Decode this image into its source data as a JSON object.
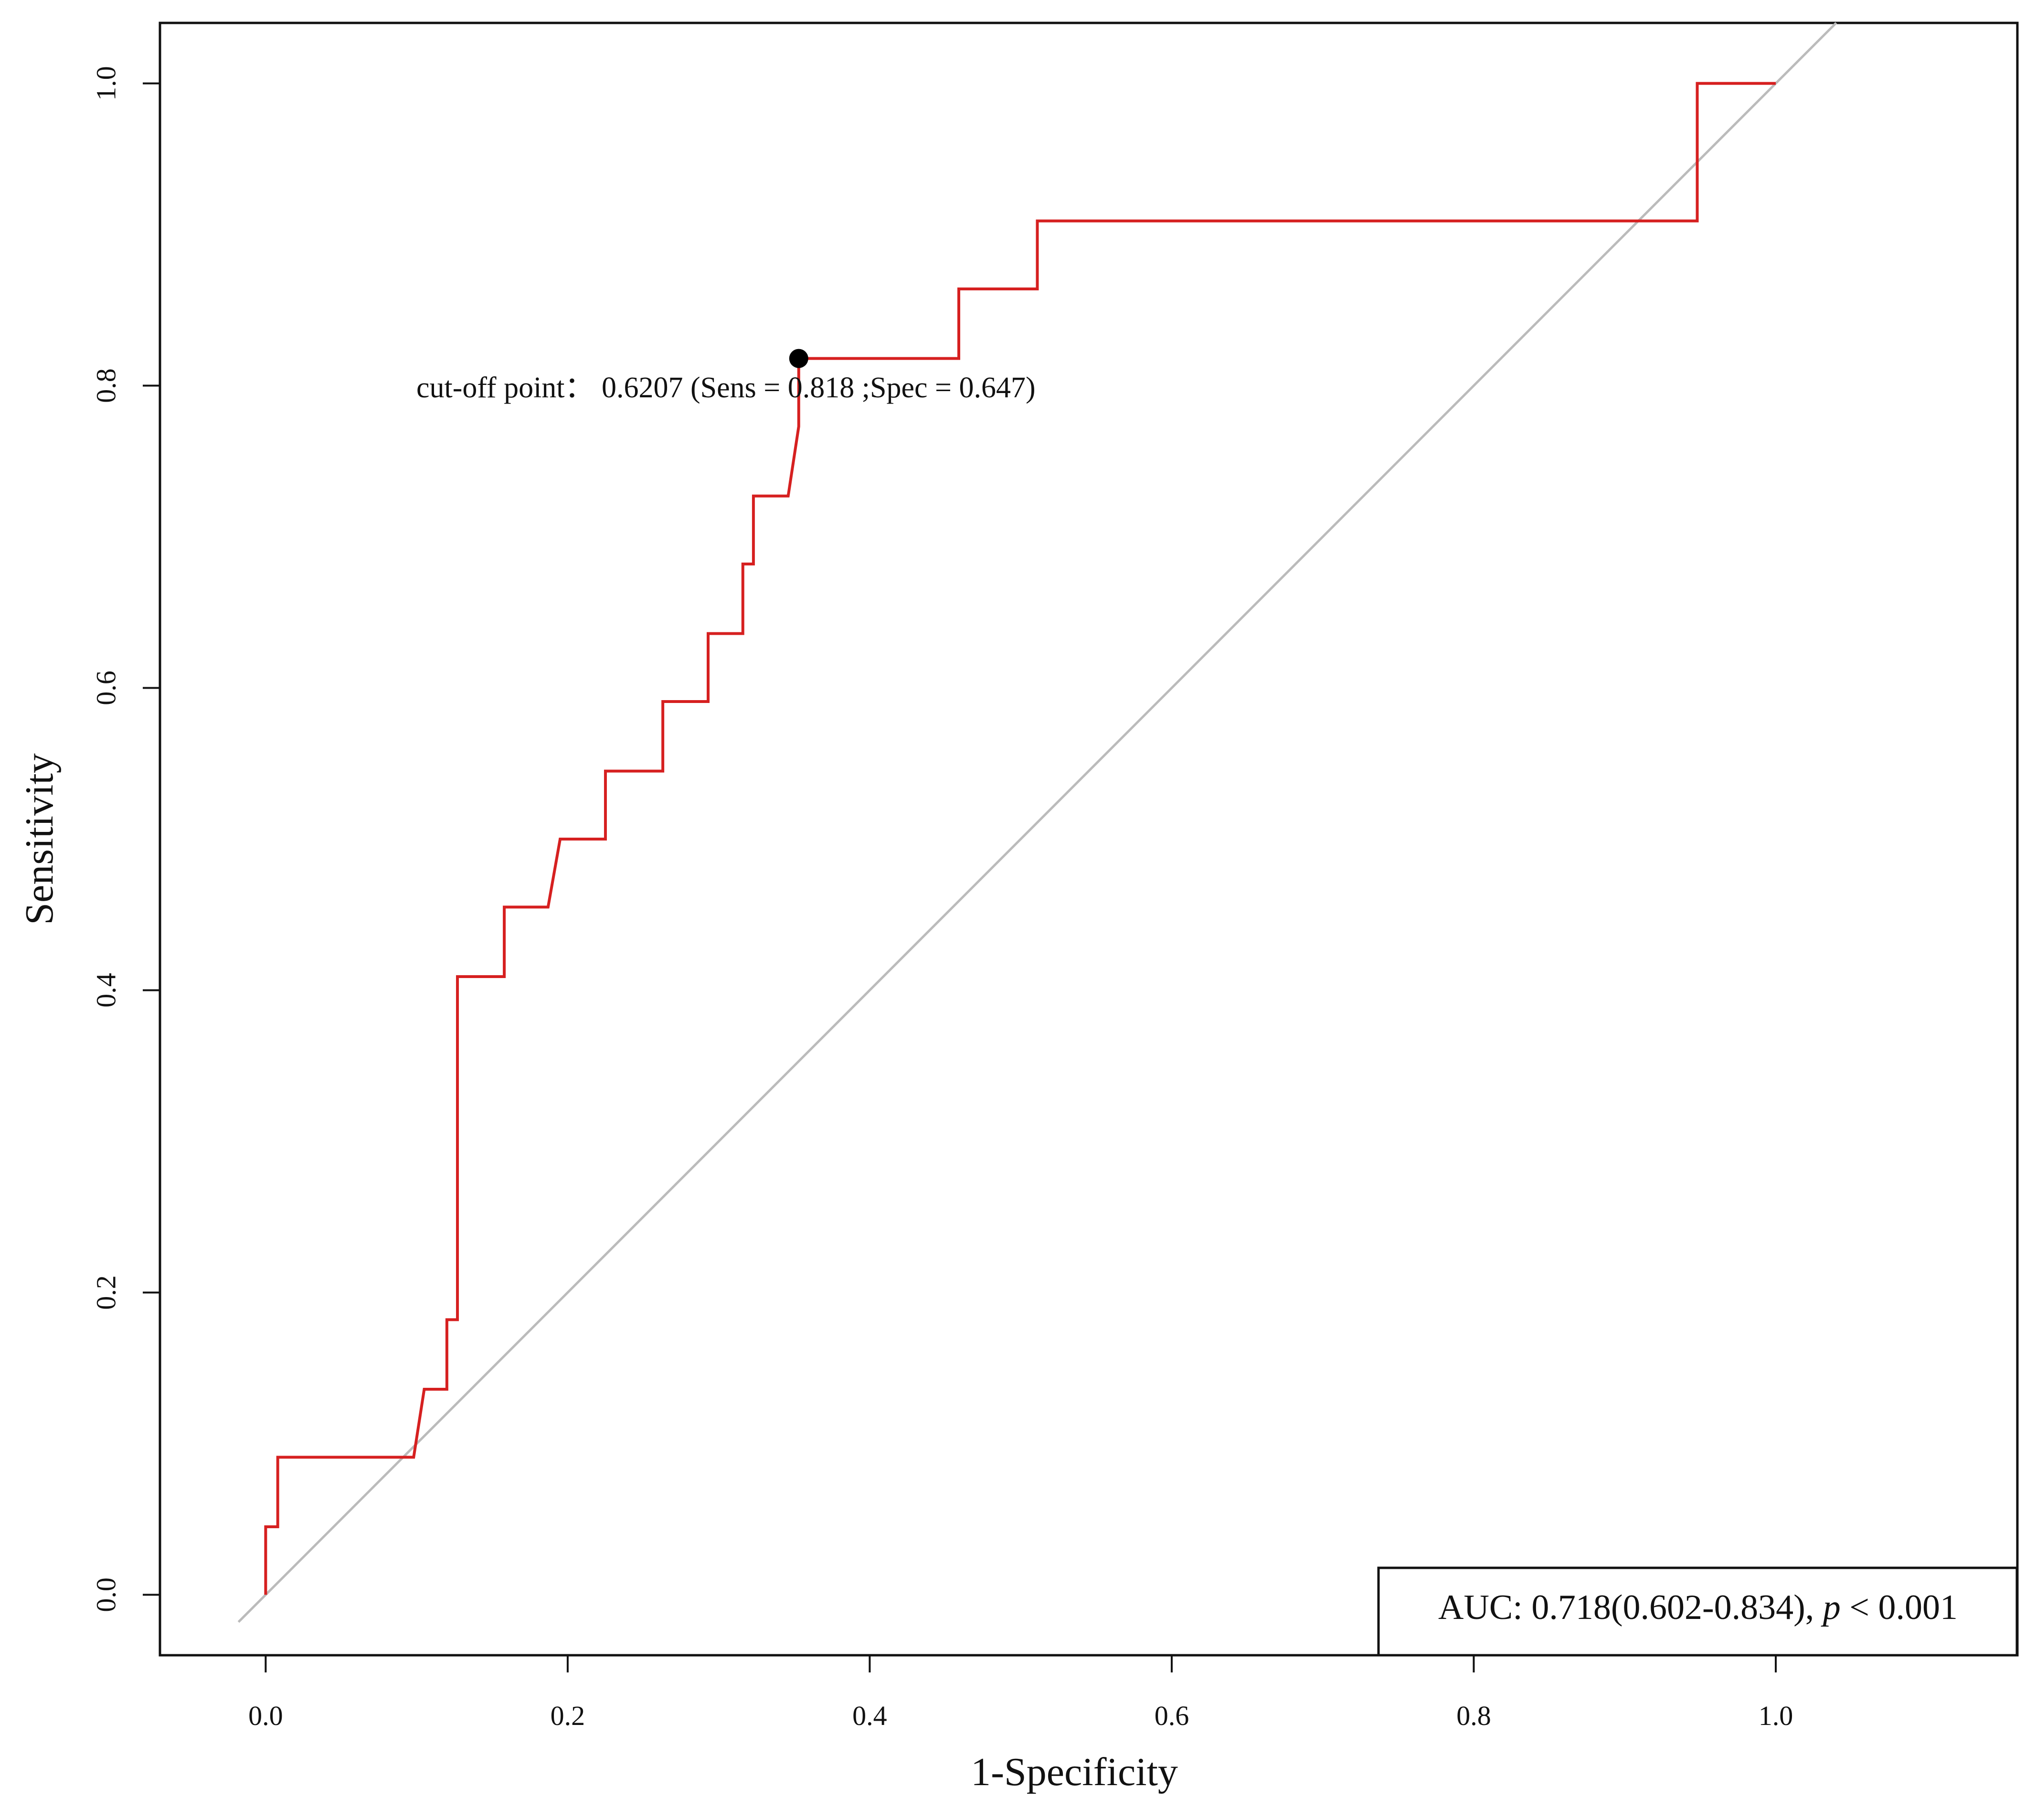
{
  "chart_data": {
    "type": "line",
    "title": "",
    "xlabel": "1-Specificity",
    "ylabel": "Sensitivity",
    "xlim": [
      -0.07,
      1.16
    ],
    "ylim": [
      -0.04,
      1.04
    ],
    "xticks": [
      0.0,
      0.2,
      0.4,
      0.6,
      0.8,
      1.0
    ],
    "yticks": [
      0.0,
      0.2,
      0.4,
      0.6,
      0.8,
      1.0
    ],
    "xtick_labels": [
      "0.0",
      "0.2",
      "0.4",
      "0.6",
      "0.8",
      "1.0"
    ],
    "ytick_labels": [
      "0.0",
      "0.2",
      "0.4",
      "0.6",
      "0.8",
      "1.0"
    ],
    "series": [
      {
        "name": "ROC curve",
        "color": "#d62020",
        "points": [
          [
            0.0,
            0.0
          ],
          [
            0.0,
            0.045
          ],
          [
            0.008,
            0.045
          ],
          [
            0.008,
            0.091
          ],
          [
            0.098,
            0.091
          ],
          [
            0.105,
            0.136
          ],
          [
            0.12,
            0.136
          ],
          [
            0.12,
            0.182
          ],
          [
            0.127,
            0.182
          ],
          [
            0.127,
            0.409
          ],
          [
            0.158,
            0.409
          ],
          [
            0.158,
            0.455
          ],
          [
            0.187,
            0.455
          ],
          [
            0.195,
            0.5
          ],
          [
            0.225,
            0.5
          ],
          [
            0.225,
            0.545
          ],
          [
            0.263,
            0.545
          ],
          [
            0.263,
            0.591
          ],
          [
            0.293,
            0.591
          ],
          [
            0.293,
            0.636
          ],
          [
            0.316,
            0.636
          ],
          [
            0.316,
            0.682
          ],
          [
            0.323,
            0.682
          ],
          [
            0.323,
            0.727
          ],
          [
            0.346,
            0.727
          ],
          [
            0.353,
            0.773
          ],
          [
            0.353,
            0.818
          ],
          [
            0.459,
            0.818
          ],
          [
            0.459,
            0.864
          ],
          [
            0.511,
            0.864
          ],
          [
            0.511,
            0.909
          ],
          [
            0.948,
            0.909
          ],
          [
            0.948,
            1.0
          ],
          [
            1.0,
            1.0
          ]
        ]
      },
      {
        "name": "reference line",
        "color": "#bbbbbb",
        "points": [
          [
            -0.018,
            -0.018
          ],
          [
            1.04,
            1.04
          ]
        ]
      }
    ],
    "cutoff_point": {
      "x": 0.353,
      "y": 0.818,
      "color": "#000000"
    },
    "annotations": {
      "cutoff_label": "cut-off point： 0.6207 (Sens = 0.818 ;Spec = 0.647)",
      "auc_prefix": "AUC: 0.718(0.602-0.834), ",
      "auc_p": "p",
      "auc_suffix": " < 0.001",
      "auc_position": "bottom-right"
    },
    "grid": false
  }
}
